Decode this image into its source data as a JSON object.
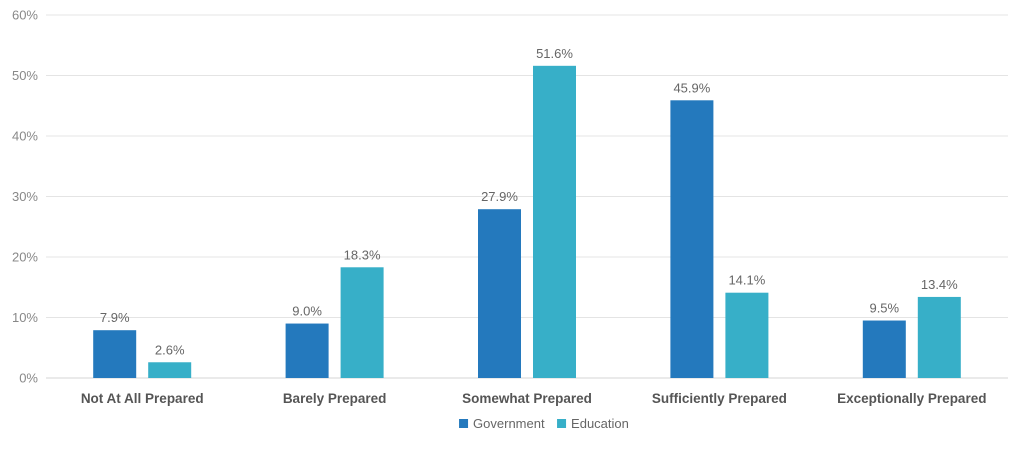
{
  "chart_data": {
    "type": "bar",
    "categories": [
      "Not At All Prepared",
      "Barely Prepared",
      "Somewhat Prepared",
      "Sufficiently Prepared",
      "Exceptionally Prepared"
    ],
    "series": [
      {
        "name": "Government",
        "color": "#2479BD",
        "values": [
          7.9,
          9.0,
          27.9,
          45.9,
          9.5
        ],
        "labels": [
          "7.9%",
          "9.0%",
          "27.9%",
          "45.9%",
          "9.5%"
        ]
      },
      {
        "name": "Education",
        "color": "#37AFC8",
        "values": [
          2.6,
          18.3,
          51.6,
          14.1,
          13.4
        ],
        "labels": [
          "2.6%",
          "18.3%",
          "51.6%",
          "14.1%",
          "13.4%"
        ]
      }
    ],
    "y_ticks": [
      "0%",
      "10%",
      "20%",
      "30%",
      "40%",
      "50%",
      "60%"
    ],
    "ylim": [
      0,
      60
    ],
    "grid": true,
    "legend_position": "bottom-center",
    "title": "",
    "xlabel": "",
    "ylabel": ""
  }
}
